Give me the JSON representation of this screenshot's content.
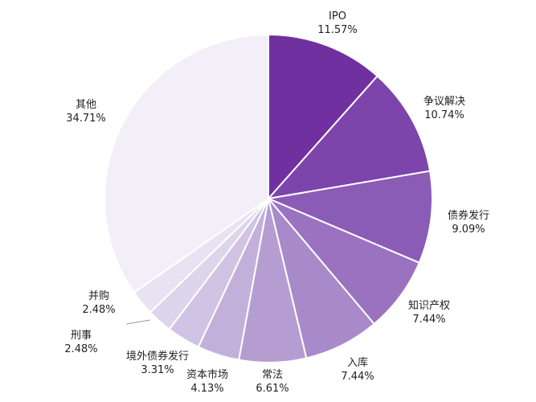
{
  "chart_data": {
    "type": "pie",
    "title": "",
    "start": "12 o'clock, clockwise",
    "slices": [
      {
        "label": "IPO",
        "value": 11.57,
        "display": "11.57%",
        "color": "#7030a0"
      },
      {
        "label": "争议解决",
        "value": 10.74,
        "display": "10.74%",
        "color": "#7d44ac"
      },
      {
        "label": "债券发行",
        "value": 9.09,
        "display": "9.09%",
        "color": "#8b5cb6"
      },
      {
        "label": "知识产权",
        "value": 7.44,
        "display": "7.44%",
        "color": "#9a72c0"
      },
      {
        "label": "入库",
        "value": 7.44,
        "display": "7.44%",
        "color": "#a889c9"
      },
      {
        "label": "常法",
        "value": 6.61,
        "display": "6.61%",
        "color": "#b59dd2"
      },
      {
        "label": "资本市场",
        "value": 4.13,
        "display": "4.13%",
        "color": "#c2b0db"
      },
      {
        "label": "境外债券发行",
        "value": 3.31,
        "display": "3.31%",
        "color": "#d0c3e4"
      },
      {
        "label": "刑事",
        "value": 2.48,
        "display": "2.48%",
        "color": "#ddd5ec"
      },
      {
        "label": "并购",
        "value": 2.48,
        "display": "2.48%",
        "color": "#e8e2f2"
      },
      {
        "label": "其他",
        "value": 34.71,
        "display": "34.71%",
        "color": "#f3eff8"
      }
    ]
  }
}
